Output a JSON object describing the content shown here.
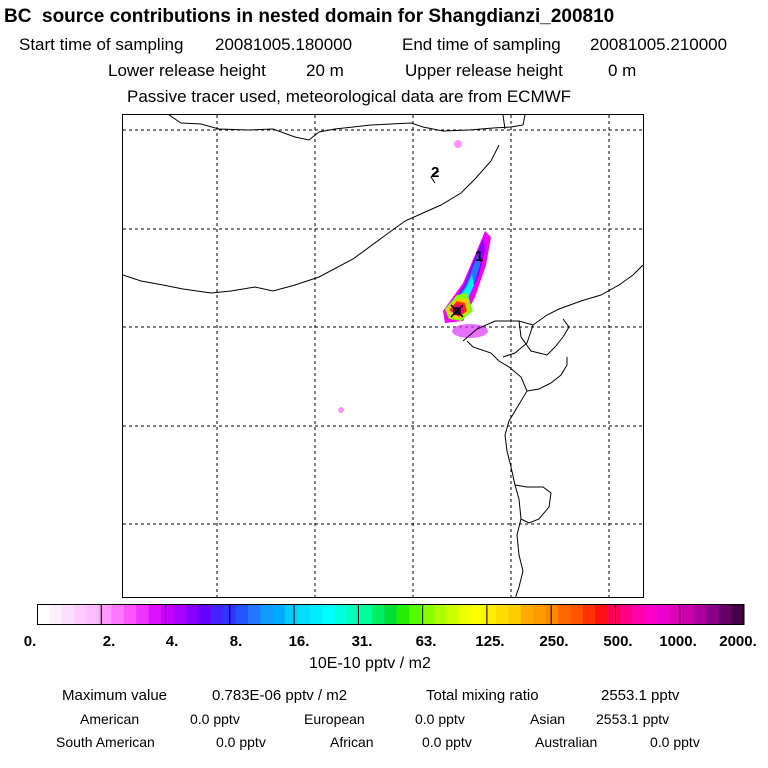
{
  "header": {
    "title": "BC  source contributions in nested domain for Shangdianzi_200810",
    "start_label": "Start time of sampling",
    "start_value": "20081005.180000",
    "end_label": "End time of sampling",
    "end_value": "20081005.210000",
    "lower_label": "Lower release height",
    "lower_value": "20 m",
    "upper_label": "Upper release height",
    "upper_value": "0 m",
    "note": "Passive tracer used, meteorological data are from ECMWF"
  },
  "map": {
    "labels": [
      "1",
      "2"
    ],
    "receptor_marker": "station-cross-icon",
    "color_scale": [
      "#ffe8ff",
      "#ffc8ff",
      "#ff9cff",
      "#ff70ff",
      "#ff44ff",
      "#ee00ff",
      "#cc00ff",
      "#9900ff",
      "#7700ff",
      "#5500ff",
      "#3322ff",
      "#2255ff",
      "#1188ff",
      "#00bbff",
      "#00ddff",
      "#00ffee",
      "#00ffbb",
      "#00ee88",
      "#00dd44",
      "#33ee00",
      "#88ff00",
      "#ccff00",
      "#ffff00",
      "#ffcc00",
      "#ffaa00",
      "#ff8800",
      "#ff5500",
      "#ff2200",
      "#ff0066",
      "#ff00aa",
      "#dd00bb",
      "#aa0099",
      "#770066",
      "#440033"
    ]
  },
  "colorbar": {
    "ticks": [
      "0.",
      "2.",
      "4.",
      "8.",
      "16.",
      "31.",
      "63.",
      "125.",
      "250.",
      "500.",
      "1000.",
      "2000."
    ],
    "unit": "10E-10 pptv / m2",
    "colors": [
      "#ffffff",
      "#ffeeff",
      "#ffddff",
      "#ffccff",
      "#ffbbff",
      "#ff99ff",
      "#ff77ff",
      "#ff55ff",
      "#ee33ff",
      "#dd11ff",
      "#cc00ff",
      "#aa00ff",
      "#8800ff",
      "#6600ff",
      "#4422ff",
      "#3333ff",
      "#2255ff",
      "#2277ff",
      "#1199ff",
      "#00aaff",
      "#00ccff",
      "#00ddff",
      "#00eeff",
      "#00ffff",
      "#00ffdd",
      "#00ffbb",
      "#00ff99",
      "#00ee66",
      "#00dd33",
      "#22ee00",
      "#55ff00",
      "#88ff00",
      "#aaff00",
      "#ccff00",
      "#eeff00",
      "#ffff00",
      "#ffee00",
      "#ffdd00",
      "#ffcc00",
      "#ffaa00",
      "#ff9900",
      "#ff8800",
      "#ff6600",
      "#ff5500",
      "#ff3300",
      "#ff1111",
      "#ff0055",
      "#ff0088",
      "#ff00aa",
      "#ff00cc",
      "#ee00cc",
      "#dd00bb",
      "#cc00aa",
      "#aa0099",
      "#880088",
      "#660066",
      "#440044"
    ]
  },
  "stats": {
    "max_label": "Maximum value",
    "max_value": "0.783E-06 pptv / m2",
    "total_label": "Total mixing ratio",
    "total_value": "2553.1 pptv",
    "regions": [
      {
        "name": "American",
        "value": "0.0 pptv"
      },
      {
        "name": "European",
        "value": "0.0 pptv"
      },
      {
        "name": "Asian",
        "value": "2553.1 pptv"
      },
      {
        "name": "South American",
        "value": "0.0 pptv"
      },
      {
        "name": "African",
        "value": "0.0 pptv"
      },
      {
        "name": "Australian",
        "value": "0.0 pptv"
      }
    ]
  }
}
